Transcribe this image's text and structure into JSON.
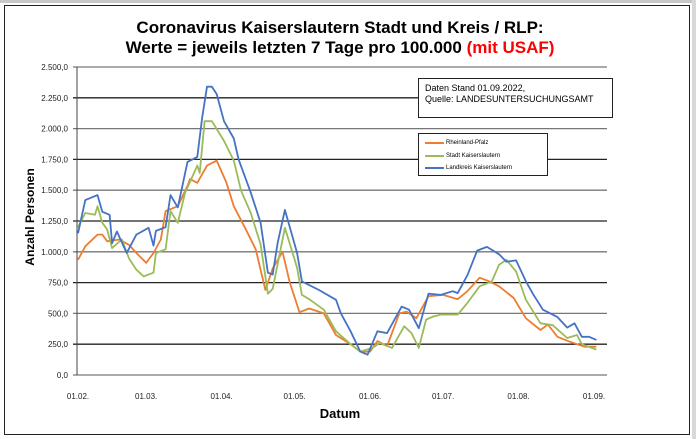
{
  "chart_data": {
    "type": "line",
    "title_line1": "Coronavirus Kaiserslautern Stadt und Kreis / RLP:",
    "title_line2": "Werte = jeweils letzten 7 Tage pro 100.000",
    "title_highlight": "(mit USAF)",
    "title_highlight_color": "#ff0000",
    "xlabel": "Datum",
    "ylabel": "Anzahl Personen",
    "ylim": [
      0,
      2500
    ],
    "yticks": [
      "0,0",
      "250,0",
      "500,0",
      "750,0",
      "1.000,0",
      "1.250,0",
      "1.500,0",
      "1.750,0",
      "2.000,0",
      "2.250,0",
      "2.500,0"
    ],
    "xticks": [
      "01.02.",
      "01.03.",
      "01.04.",
      "01.05.",
      "01.06.",
      "01.07.",
      "01.08.",
      "01.09."
    ],
    "xlim": [
      "01.02.",
      "04.09."
    ],
    "grid": true,
    "legend_position": "top-right",
    "annotation": {
      "line1": "Daten Stand  01.09.2022,",
      "line2": "Quelle: LANDESUNTERSUCHUNGSAMT"
    },
    "series": [
      {
        "name": "Rheinland-Pfalz",
        "color": "#ed7d31",
        "points": [
          [
            "01.02",
            935
          ],
          [
            "04.02",
            1045
          ],
          [
            "09.02",
            1140
          ],
          [
            "11.02",
            1140
          ],
          [
            "13.02",
            1085
          ],
          [
            "18.02",
            1100
          ],
          [
            "22.02",
            1055
          ],
          [
            "25.02",
            990
          ],
          [
            "01.03",
            910
          ],
          [
            "04.03",
            990
          ],
          [
            "07.03",
            1100
          ],
          [
            "09.03",
            1330
          ],
          [
            "14.03",
            1370
          ],
          [
            "18.03",
            1535
          ],
          [
            "19.03",
            1590
          ],
          [
            "22.03",
            1560
          ],
          [
            "26.03",
            1700
          ],
          [
            "30.03",
            1740
          ],
          [
            "03.04",
            1560
          ],
          [
            "06.04",
            1370
          ],
          [
            "11.04",
            1180
          ],
          [
            "15.04",
            1020
          ],
          [
            "19.04",
            690
          ],
          [
            "22.04",
            865
          ],
          [
            "26.04",
            1000
          ],
          [
            "29.04",
            750
          ],
          [
            "03.05",
            510
          ],
          [
            "07.05",
            540
          ],
          [
            "13.05",
            500
          ],
          [
            "18.05",
            325
          ],
          [
            "24.05",
            250
          ],
          [
            "28.05",
            190
          ],
          [
            "01.06",
            190
          ],
          [
            "04.06",
            275
          ],
          [
            "08.06",
            235
          ],
          [
            "13.06",
            500
          ],
          [
            "16.06",
            515
          ],
          [
            "20.06",
            460
          ],
          [
            "25.06",
            640
          ],
          [
            "01.07",
            650
          ],
          [
            "07.07",
            615
          ],
          [
            "11.07",
            680
          ],
          [
            "16.07",
            790
          ],
          [
            "20.07",
            760
          ],
          [
            "24.07",
            720
          ],
          [
            "30.07",
            625
          ],
          [
            "04.08",
            460
          ],
          [
            "10.08",
            365
          ],
          [
            "13.08",
            410
          ],
          [
            "17.08",
            310
          ],
          [
            "22.08",
            270
          ],
          [
            "28.08",
            230
          ],
          [
            "02.09",
            230
          ]
        ]
      },
      {
        "name": "Stadt Kaiserslautern",
        "color": "#9bbb59",
        "points": [
          [
            "01.02",
            1200
          ],
          [
            "04.02",
            1315
          ],
          [
            "08.02",
            1300
          ],
          [
            "09.02",
            1370
          ],
          [
            "11.02",
            1235
          ],
          [
            "13.02",
            1180
          ],
          [
            "15.02",
            1030
          ],
          [
            "19.02",
            1100
          ],
          [
            "22.02",
            945
          ],
          [
            "25.02",
            855
          ],
          [
            "28.02",
            800
          ],
          [
            "04.03",
            830
          ],
          [
            "05.03",
            990
          ],
          [
            "09.03",
            1020
          ],
          [
            "11.03",
            1330
          ],
          [
            "14.03",
            1235
          ],
          [
            "17.03",
            1480
          ],
          [
            "22.03",
            1700
          ],
          [
            "23.03",
            1640
          ],
          [
            "25.03",
            2060
          ],
          [
            "28.03",
            2060
          ],
          [
            "02.04",
            1900
          ],
          [
            "06.04",
            1740
          ],
          [
            "09.04",
            1495
          ],
          [
            "13.04",
            1315
          ],
          [
            "17.04",
            1060
          ],
          [
            "20.04",
            660
          ],
          [
            "22.04",
            700
          ],
          [
            "27.04",
            1195
          ],
          [
            "02.05",
            870
          ],
          [
            "04.05",
            650
          ],
          [
            "07.05",
            615
          ],
          [
            "13.05",
            530
          ],
          [
            "18.05",
            355
          ],
          [
            "24.05",
            250
          ],
          [
            "28.05",
            190
          ],
          [
            "02.06",
            220
          ],
          [
            "05.06",
            260
          ],
          [
            "10.06",
            220
          ],
          [
            "15.06",
            395
          ],
          [
            "18.06",
            340
          ],
          [
            "21.06",
            220
          ],
          [
            "24.06",
            450
          ],
          [
            "27.06",
            475
          ],
          [
            "30.06",
            490
          ],
          [
            "07.07",
            490
          ],
          [
            "11.07",
            585
          ],
          [
            "16.07",
            720
          ],
          [
            "21.07",
            760
          ],
          [
            "24.07",
            895
          ],
          [
            "27.07",
            935
          ],
          [
            "31.07",
            840
          ],
          [
            "04.08",
            610
          ],
          [
            "10.08",
            420
          ],
          [
            "15.08",
            405
          ],
          [
            "21.08",
            300
          ],
          [
            "25.08",
            325
          ],
          [
            "27.08",
            250
          ],
          [
            "02.09",
            205
          ]
        ]
      },
      {
        "name": "Landkreis Kaiserslautern",
        "color": "#4472c4",
        "points": [
          [
            "01.02",
            1150
          ],
          [
            "04.02",
            1420
          ],
          [
            "09.02",
            1460
          ],
          [
            "11.02",
            1325
          ],
          [
            "14.02",
            1300
          ],
          [
            "15.02",
            1070
          ],
          [
            "17.02",
            1165
          ],
          [
            "21.02",
            990
          ],
          [
            "25.02",
            1140
          ],
          [
            "02.03",
            1195
          ],
          [
            "04.03",
            1050
          ],
          [
            "05.03",
            1170
          ],
          [
            "09.03",
            1200
          ],
          [
            "11.03",
            1460
          ],
          [
            "14.03",
            1360
          ],
          [
            "18.03",
            1730
          ],
          [
            "22.03",
            1770
          ],
          [
            "24.03",
            2085
          ],
          [
            "26.03",
            2340
          ],
          [
            "28.03",
            2340
          ],
          [
            "30.03",
            2280
          ],
          [
            "02.04",
            2060
          ],
          [
            "06.04",
            1920
          ],
          [
            "08.04",
            1750
          ],
          [
            "13.04",
            1480
          ],
          [
            "17.04",
            1235
          ],
          [
            "20.04",
            830
          ],
          [
            "22.04",
            815
          ],
          [
            "24.04",
            1070
          ],
          [
            "27.04",
            1340
          ],
          [
            "02.05",
            990
          ],
          [
            "04.05",
            760
          ],
          [
            "11.05",
            690
          ],
          [
            "18.05",
            610
          ],
          [
            "20.05",
            500
          ],
          [
            "24.05",
            355
          ],
          [
            "28.05",
            190
          ],
          [
            "31.05",
            165
          ],
          [
            "04.06",
            355
          ],
          [
            "08.06",
            340
          ],
          [
            "14.06",
            555
          ],
          [
            "17.06",
            530
          ],
          [
            "21.06",
            380
          ],
          [
            "25.06",
            660
          ],
          [
            "30.06",
            650
          ],
          [
            "05.07",
            680
          ],
          [
            "07.07",
            665
          ],
          [
            "11.07",
            810
          ],
          [
            "15.07",
            1010
          ],
          [
            "19.07",
            1040
          ],
          [
            "24.07",
            980
          ],
          [
            "27.07",
            920
          ],
          [
            "31.07",
            930
          ],
          [
            "04.08",
            760
          ],
          [
            "07.08",
            655
          ],
          [
            "11.08",
            530
          ],
          [
            "17.08",
            470
          ],
          [
            "21.08",
            385
          ],
          [
            "24.08",
            420
          ],
          [
            "27.08",
            310
          ],
          [
            "30.08",
            310
          ],
          [
            "02.09",
            285
          ]
        ]
      }
    ]
  }
}
